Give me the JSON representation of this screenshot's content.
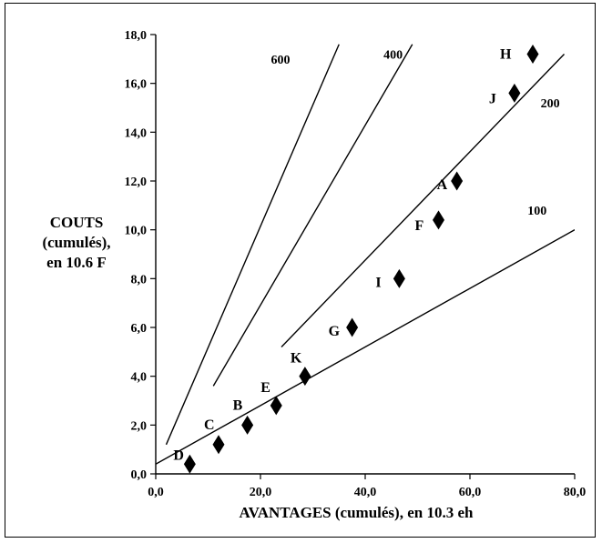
{
  "chart_data": {
    "type": "scatter",
    "xlabel": "AVANTAGES (cumulés), en 10.3 eh",
    "ylabel_lines": [
      "COUTS",
      "(cumulés),",
      "en 10.6 F"
    ],
    "xlim": [
      0,
      80
    ],
    "ylim": [
      0,
      18
    ],
    "xticks": [
      0,
      20,
      40,
      60,
      80
    ],
    "xtick_labels": [
      "0,0",
      "20,0",
      "40,0",
      "60,0",
      "80,0"
    ],
    "yticks": [
      0,
      2,
      4,
      6,
      8,
      10,
      12,
      14,
      16,
      18
    ],
    "ytick_labels": [
      "0,0",
      "2,0",
      "4,0",
      "6,0",
      "8,0",
      "10,0",
      "12,0",
      "14,0",
      "16,0",
      "18,0"
    ],
    "grid": false,
    "points": [
      {
        "label": "D",
        "x": 6.5,
        "y": 0.4
      },
      {
        "label": "C",
        "x": 12.0,
        "y": 1.2
      },
      {
        "label": "B",
        "x": 17.5,
        "y": 2.0
      },
      {
        "label": "E",
        "x": 23.0,
        "y": 2.8
      },
      {
        "label": "K",
        "x": 28.5,
        "y": 4.0
      },
      {
        "label": "G",
        "x": 37.5,
        "y": 6.0
      },
      {
        "label": "I",
        "x": 46.5,
        "y": 8.0
      },
      {
        "label": "F",
        "x": 54.0,
        "y": 10.4
      },
      {
        "label": "A",
        "x": 57.5,
        "y": 12.0
      },
      {
        "label": "J",
        "x": 68.5,
        "y": 15.6
      },
      {
        "label": "H",
        "x": 72.0,
        "y": 17.2
      }
    ],
    "reference_lines": [
      {
        "label": "600",
        "x1": 2.0,
        "y1": 1.2,
        "x2": 35.0,
        "y2": 17.6
      },
      {
        "label": "400",
        "x1": 11.0,
        "y1": 3.6,
        "x2": 49.0,
        "y2": 17.6
      },
      {
        "label": "200",
        "x1": 24.0,
        "y1": 5.2,
        "x2": 78.0,
        "y2": 17.2
      },
      {
        "label": "100",
        "x1": 0.0,
        "y1": 0.4,
        "x2": 80.0,
        "y2": 10.0
      }
    ]
  }
}
